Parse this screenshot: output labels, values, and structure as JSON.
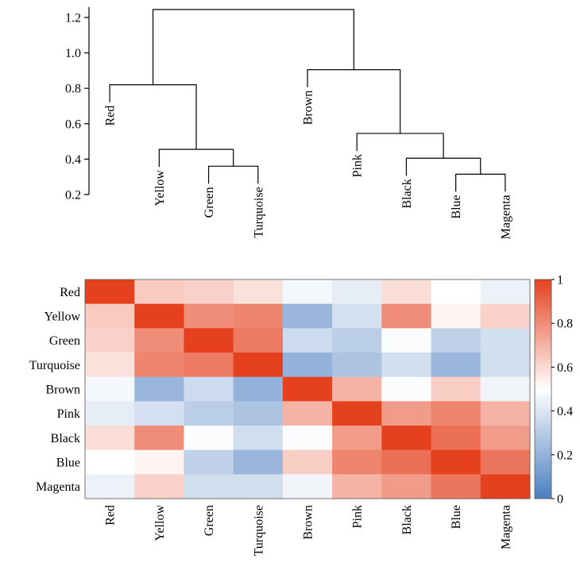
{
  "chart_data": [
    {
      "type": "dendrogram",
      "yaxis": {
        "ticks": [
          0.2,
          0.4,
          0.6,
          0.8,
          1.0,
          1.2
        ],
        "tick_labels": [
          "0.2",
          "0.4",
          "0.6",
          "0.8",
          "1.0",
          "1.2"
        ],
        "ylim": [
          0.2,
          1.25
        ]
      },
      "leaves": [
        "Red",
        "Yellow",
        "Green",
        "Turquoise",
        "Brown",
        "Pink",
        "Black",
        "Blue",
        "Magenta"
      ],
      "merges": [
        {
          "id": "m1",
          "left": "Green",
          "right": "Turquoise",
          "height": 0.36
        },
        {
          "id": "m2",
          "left": "Yellow",
          "right": "m1",
          "height": 0.455
        },
        {
          "id": "m3",
          "left": "Red",
          "right": "m2",
          "height": 0.82
        },
        {
          "id": "m4",
          "left": "Blue",
          "right": "Magenta",
          "height": 0.315
        },
        {
          "id": "m5",
          "left": "Black",
          "right": "m4",
          "height": 0.405
        },
        {
          "id": "m6",
          "left": "Pink",
          "right": "m5",
          "height": 0.545
        },
        {
          "id": "m7",
          "left": "Brown",
          "right": "m6",
          "height": 0.905
        },
        {
          "id": "m8",
          "left": "m3",
          "right": "m7",
          "height": 1.245
        }
      ]
    },
    {
      "type": "heatmap",
      "rows": [
        "Red",
        "Yellow",
        "Green",
        "Turquoise",
        "Brown",
        "Pink",
        "Black",
        "Blue",
        "Magenta"
      ],
      "columns": [
        "Red",
        "Yellow",
        "Green",
        "Turquoise",
        "Brown",
        "Pink",
        "Black",
        "Blue",
        "Magenta"
      ],
      "values": [
        [
          1.0,
          0.64,
          0.62,
          0.58,
          0.47,
          0.43,
          0.59,
          0.5,
          0.45
        ],
        [
          0.64,
          1.0,
          0.8,
          0.82,
          0.22,
          0.38,
          0.8,
          0.53,
          0.62
        ],
        [
          0.62,
          0.8,
          1.0,
          0.85,
          0.36,
          0.31,
          0.49,
          0.32,
          0.37
        ],
        [
          0.58,
          0.82,
          0.85,
          1.0,
          0.2,
          0.27,
          0.37,
          0.22,
          0.37
        ],
        [
          0.47,
          0.22,
          0.36,
          0.2,
          1.0,
          0.7,
          0.49,
          0.63,
          0.46
        ],
        [
          0.43,
          0.38,
          0.31,
          0.27,
          0.7,
          1.0,
          0.76,
          0.82,
          0.7
        ],
        [
          0.59,
          0.8,
          0.49,
          0.37,
          0.49,
          0.76,
          1.0,
          0.88,
          0.76
        ],
        [
          0.5,
          0.53,
          0.32,
          0.22,
          0.63,
          0.82,
          0.88,
          1.0,
          0.86
        ],
        [
          0.45,
          0.62,
          0.37,
          0.37,
          0.46,
          0.7,
          0.76,
          0.86,
          1.0
        ]
      ],
      "colorbar": {
        "range": [
          0,
          1
        ],
        "ticks": [
          0,
          0.2,
          0.4,
          0.6,
          0.8,
          1
        ],
        "tick_labels": [
          "0",
          "0.2",
          "0.4",
          "0.6",
          "0.8",
          "1"
        ]
      },
      "colors": {
        "low": "#4a7fbf",
        "mid": "#ffffff",
        "high": "#e5411e"
      }
    }
  ]
}
